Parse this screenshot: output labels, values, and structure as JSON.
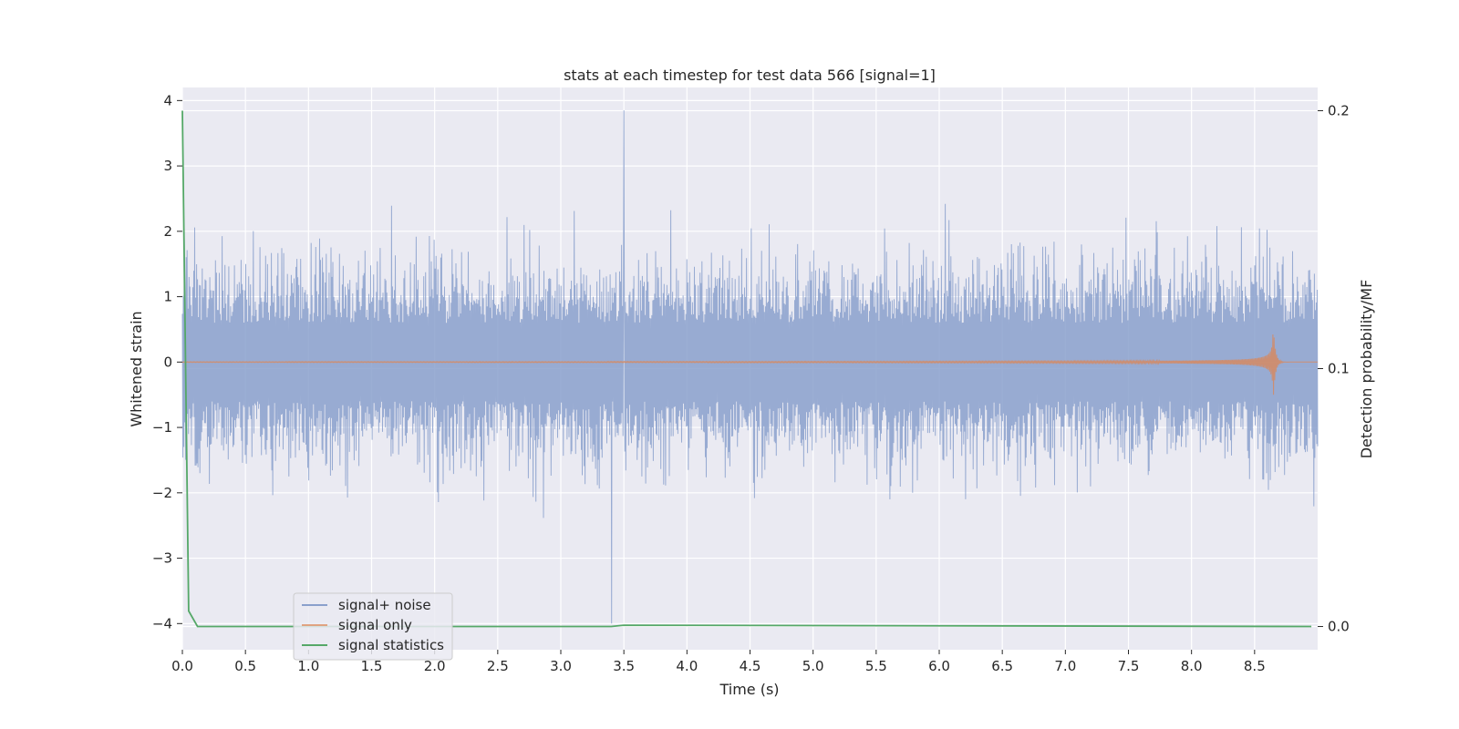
{
  "chart_data": {
    "type": "line",
    "title": "stats at each timestep for test data 566 [signal=1]",
    "xlabel": "Time (s)",
    "ylabel": "Whitened strain",
    "y2label": "Detection probability/MF",
    "xlim": [
      0.0,
      9.0
    ],
    "ylim": [
      -4.4,
      4.2
    ],
    "y2lim": [
      -0.009,
      0.209
    ],
    "xticks": [
      0.0,
      0.5,
      1.0,
      1.5,
      2.0,
      2.5,
      3.0,
      3.5,
      4.0,
      4.5,
      5.0,
      5.5,
      6.0,
      6.5,
      7.0,
      7.5,
      8.0,
      8.5
    ],
    "xticklabels": [
      "0.0",
      "0.5",
      "1.0",
      "1.5",
      "2.0",
      "2.5",
      "3.0",
      "3.5",
      "4.0",
      "4.5",
      "5.0",
      "5.5",
      "6.0",
      "6.5",
      "7.0",
      "7.5",
      "8.0",
      "8.5"
    ],
    "yticks": [
      -4,
      -3,
      -2,
      -1,
      0,
      1,
      2,
      3,
      4
    ],
    "yticklabels": [
      "−4",
      "−3",
      "−2",
      "−1",
      "0",
      "1",
      "2",
      "3",
      "4"
    ],
    "y2ticks": [
      0.0,
      0.1,
      0.2
    ],
    "y2ticklabels": [
      "0.0",
      "0.1",
      "0.2"
    ],
    "grid": true,
    "legend_placement": "lower-left",
    "series": [
      {
        "name": "signal+ noise",
        "color": "#4c72b0",
        "axis": "left",
        "kind": "noise",
        "amplitude_band": [
          -2.0,
          2.0
        ],
        "extremes": {
          "max": 3.85,
          "min": -4.0
        },
        "x_range": [
          0.0,
          9.0
        ]
      },
      {
        "name": "signal only",
        "color": "#dd8452",
        "axis": "left",
        "kind": "chirp",
        "x_range": [
          0.0,
          9.0
        ],
        "peak_time": 8.65,
        "peak_amplitude": 0.5
      },
      {
        "name": "signal statistics",
        "color": "#55a868",
        "axis": "right",
        "x": [
          0.0,
          0.05,
          0.12,
          3.4,
          3.5,
          8.95
        ],
        "values": [
          0.2,
          0.006,
          0.0,
          0.0,
          0.0005,
          0.0
        ]
      }
    ]
  }
}
